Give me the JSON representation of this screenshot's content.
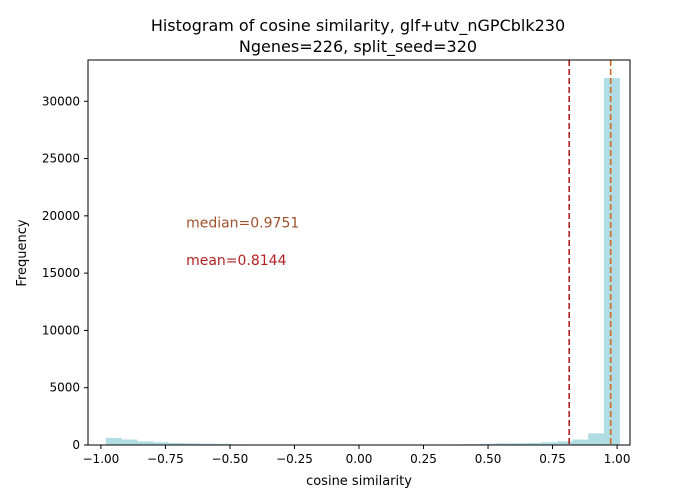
{
  "chart_data": {
    "type": "bar",
    "title_line1": "Histogram of cosine similarity, glf+utv_nGPCblk230",
    "title_line2": "Ngenes=226, split_seed=320",
    "xlabel": "cosine similarity",
    "ylabel": "Frequency",
    "xlim": [
      -1.05,
      1.05
    ],
    "ylim": [
      0,
      33600
    ],
    "xticks": [
      -1.0,
      -0.75,
      -0.5,
      -0.25,
      0.0,
      0.25,
      0.5,
      0.75,
      1.0
    ],
    "xtick_labels": [
      "−1.00",
      "−0.75",
      "−0.50",
      "−0.25",
      "0.00",
      "0.25",
      "0.50",
      "0.75",
      "1.00"
    ],
    "yticks": [
      0,
      5000,
      10000,
      15000,
      20000,
      25000,
      30000
    ],
    "ytick_labels": [
      "0",
      "5000",
      "10000",
      "15000",
      "20000",
      "25000",
      "30000"
    ],
    "bin_edges": [
      -0.98,
      -0.9197,
      -0.8594,
      -0.7991,
      -0.7388,
      -0.6785,
      -0.6182,
      -0.5579,
      -0.4976,
      -0.4373,
      -0.377,
      -0.3167,
      -0.2564,
      -0.1961,
      -0.1358,
      -0.0755,
      -0.0152,
      0.0451,
      0.1054,
      0.1657,
      0.226,
      0.2863,
      0.3466,
      0.4069,
      0.4672,
      0.5275,
      0.5878,
      0.6481,
      0.7084,
      0.7687,
      0.829,
      0.8893,
      0.9496,
      1.0099
    ],
    "values": [
      600,
      450,
      300,
      220,
      150,
      120,
      100,
      80,
      30,
      15,
      10,
      10,
      10,
      10,
      10,
      10,
      10,
      10,
      10,
      10,
      10,
      15,
      25,
      40,
      90,
      120,
      130,
      160,
      220,
      300,
      450,
      1000,
      32000
    ],
    "bar_color": "#b0dde4",
    "median": 0.9751,
    "mean": 0.8144,
    "median_label": "median=0.9751",
    "mean_label": "mean=0.8144",
    "median_color": "#d2691e",
    "mean_color": "#b22222",
    "median_text_color": "#a0522d",
    "mean_text_color": "#b22222",
    "annotation_x": -0.67,
    "median_label_y": 19400,
    "mean_label_y": 16150,
    "grid": false,
    "legend": "none"
  }
}
